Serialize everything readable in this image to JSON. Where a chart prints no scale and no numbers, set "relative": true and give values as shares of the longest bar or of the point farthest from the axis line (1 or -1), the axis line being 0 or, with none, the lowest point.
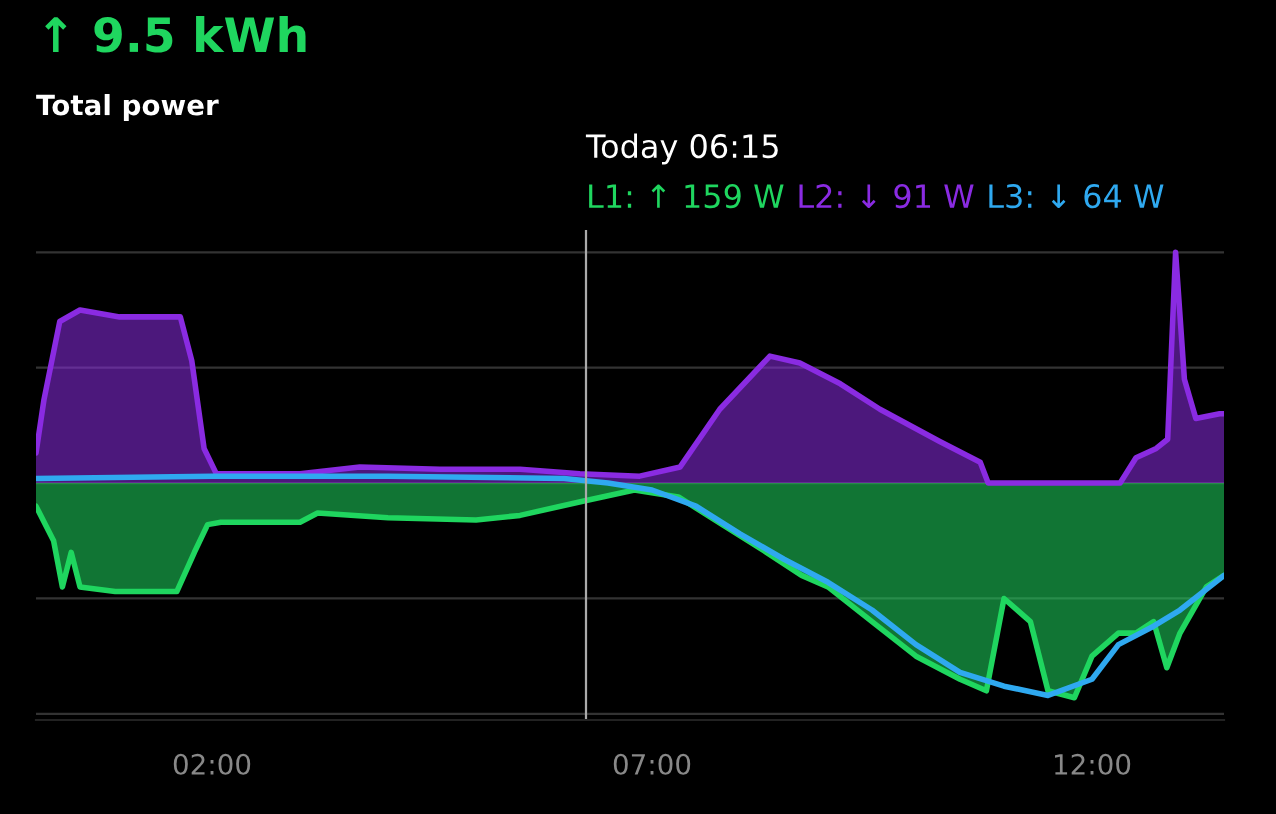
{
  "chart_data": {
    "type": "area",
    "title": "↑ 9.5 kWh",
    "subtitle": "Total power",
    "relative": true,
    "grid": "y",
    "tick_labels": "x",
    "xlim": [
      0,
      13.5
    ],
    "xticks": [
      {
        "value": 2,
        "label": "02:00"
      },
      {
        "value": 7,
        "label": "07:00"
      },
      {
        "value": 12,
        "label": "12:00"
      }
    ],
    "ref_lines": [
      {
        "axis": "x",
        "value": 6.25,
        "label": "Today 06:15",
        "color": "#aaaaaa"
      }
    ],
    "annotations": [
      ": ↑ 159 W",
      ": ↓ 91 W",
      ": ↓ 64 W"
    ],
    "series": [
      {
        "name": "L1",
        "color": "#1fd65f",
        "x": [
          0,
          0.2,
          0.3,
          0.4,
          0.5,
          0.9,
          1.6,
          1.8,
          1.95,
          2.1,
          3.0,
          3.2,
          4.0,
          5.0,
          5.5,
          6.2,
          6.8,
          7.3,
          7.8,
          8.3,
          8.7,
          9.0,
          9.5,
          10.0,
          10.5,
          10.8,
          11.0,
          11.3,
          11.5,
          11.8,
          12.0,
          12.3,
          12.5,
          12.7,
          12.85,
          13.0,
          13.3,
          13.5
        ],
        "values": [
          -0.1,
          -0.25,
          -0.45,
          -0.3,
          -0.45,
          -0.47,
          -0.47,
          -0.3,
          -0.18,
          -0.17,
          -0.17,
          -0.13,
          -0.15,
          -0.16,
          -0.14,
          -0.08,
          -0.03,
          -0.06,
          -0.18,
          -0.3,
          -0.4,
          -0.45,
          -0.6,
          -0.75,
          -0.85,
          -0.9,
          -0.5,
          -0.6,
          -0.9,
          -0.93,
          -0.75,
          -0.65,
          -0.65,
          -0.6,
          -0.8,
          -0.65,
          -0.45,
          -0.4
        ]
      },
      {
        "name": "L2",
        "type": "area",
        "color": "#8a2be2",
        "x": [
          0,
          0.09,
          0.27,
          0.5,
          0.95,
          1.64,
          1.77,
          1.91,
          2.05,
          3.0,
          3.68,
          4.59,
          5.5,
          6.18,
          6.86,
          7.32,
          7.77,
          8.34,
          8.68,
          9.14,
          9.59,
          10.27,
          10.73,
          10.82,
          10.95,
          12.32,
          12.5,
          12.73,
          12.86,
          12.95,
          13.05,
          13.18,
          13.45,
          13.5
        ],
        "values": [
          0.13,
          0.36,
          0.7,
          0.75,
          0.72,
          0.72,
          0.53,
          0.15,
          0.04,
          0.04,
          0.07,
          0.06,
          0.06,
          0.04,
          0.03,
          0.07,
          0.32,
          0.55,
          0.52,
          0.43,
          0.32,
          0.18,
          0.09,
          0,
          0,
          0,
          0.11,
          0.15,
          0.19,
          1.0,
          0.45,
          0.28,
          0.3,
          0.3
        ]
      },
      {
        "name": "L3",
        "type": "line",
        "color": "#2fa9f0",
        "x": [
          0,
          2,
          4,
          6,
          6.5,
          7,
          7.5,
          8,
          8.5,
          9,
          9.5,
          10,
          10.5,
          11,
          11.5,
          12,
          12.3,
          12.7,
          13,
          13.5
        ],
        "values": [
          0.02,
          0.03,
          0.03,
          0.02,
          0.0,
          -0.03,
          -0.1,
          -0.22,
          -0.33,
          -0.43,
          -0.55,
          -0.7,
          -0.82,
          -0.88,
          -0.92,
          -0.85,
          -0.7,
          -0.62,
          -0.55,
          -0.4
        ]
      }
    ]
  }
}
